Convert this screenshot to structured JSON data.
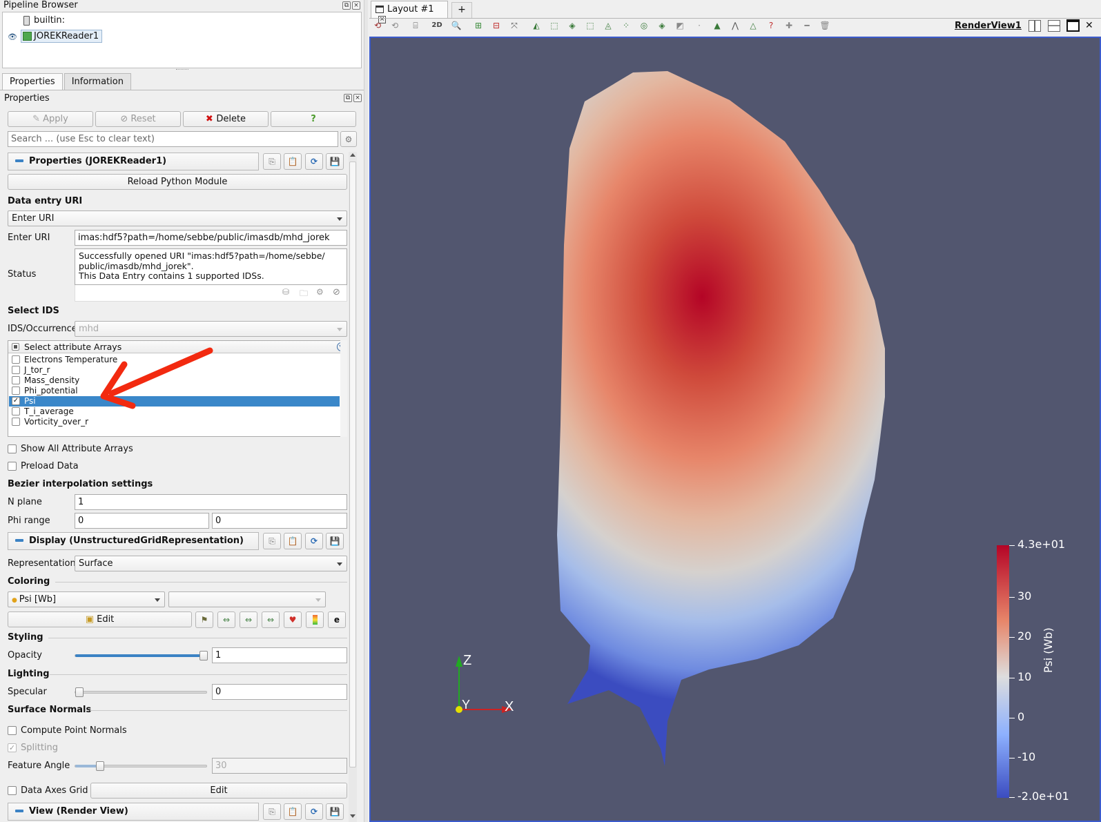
{
  "pipeline": {
    "title": "Pipeline Browser",
    "builtin": "builtin:",
    "reader": "JOREKReader1"
  },
  "tabs": [
    "Properties",
    "Information"
  ],
  "properties_panel": {
    "title": "Properties",
    "apply": "Apply",
    "reset": "Reset",
    "delete": "Delete",
    "help": "?",
    "search_placeholder": "Search ... (use Esc to clear text)",
    "group_properties": "Properties (JOREKReader1)",
    "reload_button": "Reload Python Module",
    "data_entry_section": "Data entry URI",
    "data_entry_select": "Enter URI",
    "enter_uri_label": "Enter URI",
    "enter_uri_value": "imas:hdf5?path=/home/sebbe/public/imasdb/mhd_jorek",
    "status_label": "Status",
    "status_line1": "Successfully opened URI \"imas:hdf5?path=/home/sebbe/",
    "status_line2": "public/imasdb/mhd_jorek\".",
    "status_line3": "This Data Entry contains 1 supported IDSs.",
    "select_ids_section": "Select IDS",
    "ids_label": "IDS/Occurrence",
    "ids_value": "mhd",
    "arrays_header": "Select attribute Arrays",
    "arrays": [
      {
        "name": "Electrons Temperature",
        "checked": false
      },
      {
        "name": "J_tor_r",
        "checked": false
      },
      {
        "name": "Mass_density",
        "checked": false
      },
      {
        "name": "Phi_potential",
        "checked": false
      },
      {
        "name": "Psi",
        "checked": true
      },
      {
        "name": "T_i_average",
        "checked": false
      },
      {
        "name": "Vorticity_over_r",
        "checked": false
      }
    ],
    "show_all": "Show All Attribute Arrays",
    "preload": "Preload Data",
    "bezier_section": "Bezier interpolation settings",
    "nplane_label": "N plane",
    "nplane_value": "1",
    "phirange_label": "Phi range",
    "phirange_min": "0",
    "phirange_max": "0",
    "group_display": "Display (UnstructuredGridRepresentation)",
    "representation_label": "Representation",
    "representation_value": "Surface",
    "coloring_section": "Coloring",
    "coloring_value": "Psi [Wb]",
    "edit_button": "Edit",
    "styling_section": "Styling",
    "opacity_label": "Opacity",
    "opacity_value": "1",
    "lighting_section": "Lighting",
    "specular_label": "Specular",
    "specular_value": "0",
    "surface_normals_section": "Surface Normals",
    "compute_normals": "Compute Point Normals",
    "splitting": "Splitting",
    "feature_angle_label": "Feature Angle",
    "feature_angle_value": "30",
    "data_axes_grid": "Data Axes Grid",
    "data_axes_edit": "Edit",
    "group_view": "View (Render View)"
  },
  "layout": {
    "tab": "Layout #1",
    "add_tab": "+",
    "mode_2d": "2D",
    "render_view_name": "RenderView1"
  },
  "colorbar": {
    "title": "Psi (Wb)",
    "max_label": "4.3e+01",
    "min_label": "-2.0e+01",
    "ticks": [
      "30",
      "20",
      "10",
      "0",
      "-10"
    ],
    "colors": [
      "#b40426",
      "#dddddd",
      "#3b4cc0"
    ]
  },
  "axes": {
    "z": "Z",
    "y": "Y",
    "x": "X"
  }
}
